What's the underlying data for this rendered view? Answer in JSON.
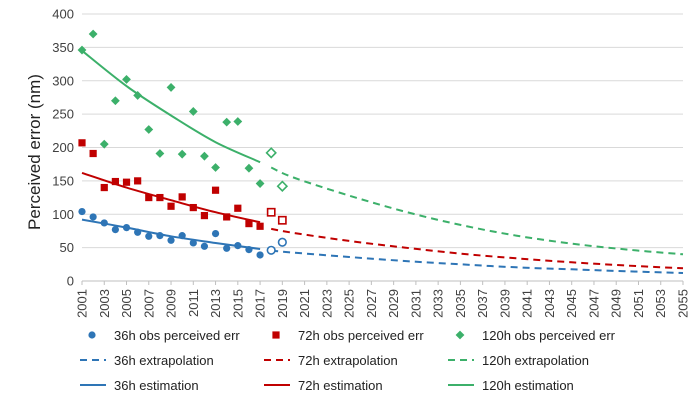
{
  "chart_data": {
    "type": "scatter",
    "title": "",
    "xlabel": "",
    "ylabel": "Perceived error (nm)",
    "xlim": [
      2001,
      2055
    ],
    "ylim": [
      0,
      400
    ],
    "yticks": [
      "0",
      "50",
      "100",
      "150",
      "200",
      "250",
      "300",
      "350",
      "400"
    ],
    "xticks": [
      "2001",
      "2003",
      "2005",
      "2007",
      "2009",
      "2011",
      "2013",
      "2015",
      "2017",
      "2019",
      "2021",
      "2023",
      "2025",
      "2027",
      "2029",
      "2031",
      "2033",
      "2035",
      "2037",
      "2039",
      "2041",
      "2043",
      "2045",
      "2047",
      "2049",
      "2051",
      "2053",
      "2055"
    ],
    "grid": "horizontal",
    "legend_position": "bottom",
    "colors": {
      "h36": "#2e75b6",
      "h72": "#c00000",
      "h120": "#3cb06a"
    },
    "series": [
      {
        "name": "36h obs perceived err",
        "kind": "observed",
        "marker": "circle",
        "color": "#2e75b6",
        "x": [
          2001,
          2002,
          2003,
          2004,
          2005,
          2006,
          2007,
          2008,
          2009,
          2010,
          2011,
          2012,
          2013,
          2014,
          2015,
          2016,
          2017
        ],
        "y": [
          104,
          96,
          87,
          77,
          80,
          73,
          67,
          68,
          61,
          68,
          57,
          52,
          71,
          49,
          53,
          47,
          39
        ]
      },
      {
        "name": "72h obs perceived err",
        "kind": "observed",
        "marker": "square",
        "color": "#c00000",
        "x": [
          2001,
          2002,
          2003,
          2004,
          2005,
          2006,
          2007,
          2008,
          2009,
          2010,
          2011,
          2012,
          2013,
          2014,
          2015,
          2016,
          2017
        ],
        "y": [
          207,
          191,
          140,
          149,
          148,
          150,
          125,
          125,
          112,
          126,
          110,
          98,
          136,
          96,
          109,
          86,
          82
        ]
      },
      {
        "name": "120h obs perceived err",
        "kind": "observed",
        "marker": "diamond",
        "color": "#3cb06a",
        "x": [
          2001,
          2002,
          2003,
          2004,
          2005,
          2006,
          2007,
          2008,
          2009,
          2010,
          2011,
          2012,
          2013,
          2014,
          2015,
          2016,
          2017
        ],
        "y": [
          346,
          370,
          205,
          270,
          302,
          278,
          227,
          191,
          290,
          190,
          254,
          187,
          170,
          238,
          239,
          169,
          146
        ]
      },
      {
        "name": "36h extrapolation",
        "kind": "extrapolation",
        "color": "#2e75b6",
        "x": [
          2018,
          2020,
          2025,
          2030,
          2035,
          2040,
          2045,
          2050,
          2055
        ],
        "y": [
          45.5,
          42.5,
          36,
          30,
          25,
          20.5,
          17.5,
          14.5,
          12
        ]
      },
      {
        "name": "72h extrapolation",
        "kind": "extrapolation",
        "color": "#c00000",
        "x": [
          2018,
          2020,
          2025,
          2030,
          2035,
          2040,
          2045,
          2050,
          2055
        ],
        "y": [
          78,
          72,
          60,
          50,
          41,
          34,
          28,
          23,
          19
        ]
      },
      {
        "name": "120h extrapolation",
        "kind": "extrapolation",
        "color": "#3cb06a",
        "x": [
          2018,
          2020,
          2025,
          2030,
          2035,
          2040,
          2045,
          2050,
          2055
        ],
        "y": [
          170,
          155,
          128,
          104,
          84,
          68,
          56,
          47,
          40
        ]
      },
      {
        "name": "36h estimation",
        "kind": "estimation",
        "color": "#2e75b6",
        "x": [
          2001,
          2005,
          2009,
          2013,
          2017
        ],
        "y": [
          92,
          80,
          67,
          57,
          48
        ]
      },
      {
        "name": "72h estimation",
        "kind": "estimation",
        "color": "#c00000",
        "x": [
          2001,
          2005,
          2009,
          2013,
          2017
        ],
        "y": [
          162,
          140,
          121,
          103,
          88
        ]
      },
      {
        "name": "120h estimation",
        "kind": "estimation",
        "color": "#3cb06a",
        "x": [
          2001,
          2005,
          2009,
          2013,
          2017
        ],
        "y": [
          345,
          292,
          248,
          208,
          178
        ]
      }
    ],
    "hollow_points": [
      {
        "group": "36h",
        "marker": "circle",
        "color": "#2e75b6",
        "x": [
          2018,
          2019
        ],
        "y": [
          46,
          58
        ]
      },
      {
        "group": "72h",
        "marker": "square",
        "color": "#c00000",
        "x": [
          2018,
          2019
        ],
        "y": [
          103,
          91
        ]
      },
      {
        "group": "120h",
        "marker": "diamond",
        "color": "#3cb06a",
        "x": [
          2018,
          2019
        ],
        "y": [
          192,
          142
        ]
      }
    ]
  }
}
